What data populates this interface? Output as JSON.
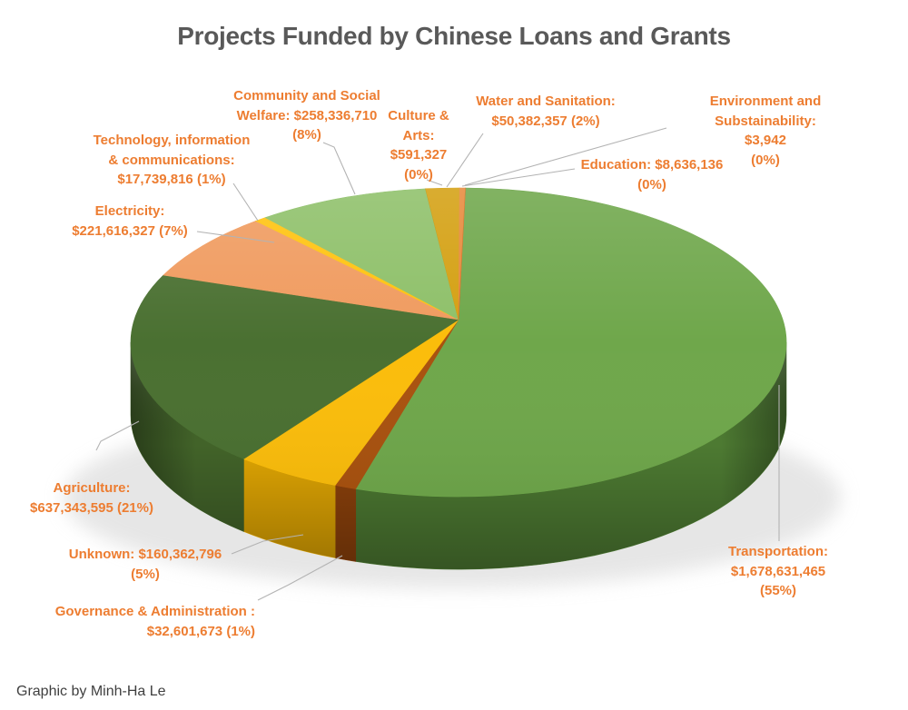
{
  "title": "Projects Funded by Chinese Loans and Grants",
  "credit": "Graphic by Minh-Ha Le",
  "colors": {
    "label_text": "#ED7D31",
    "title_text": "#595959",
    "leader_line": "#b3b3b3",
    "background": "#ffffff"
  },
  "chart_data": {
    "type": "pie",
    "style": "3d",
    "title": "Projects Funded by Chinese Loans and Grants",
    "unit": "USD",
    "slices": [
      {
        "key": "transportation",
        "name": "Transportation",
        "value": 1678631465,
        "percent_label": "55%",
        "color": "#6FA74B",
        "side_color": "#4D7A32",
        "label": "Transportation:\n$1,678,631,465 (55%)"
      },
      {
        "key": "governance-administration",
        "name": "Governance & Administration",
        "value": 32601673,
        "percent_label": "1%",
        "color": "#A9520F",
        "side_color": "#8C410B",
        "label": "Governance & Administration :\n$32,601,673 (1%)"
      },
      {
        "key": "unknown",
        "name": "Unknown",
        "value": 160362796,
        "percent_label": "5%",
        "color": "#FBBD0B",
        "side_color": "#DFA503",
        "label": "Unknown: $160,362,796\n(5%)"
      },
      {
        "key": "agriculture",
        "name": "Agriculture",
        "value": 637343595,
        "percent_label": "21%",
        "color": "#4A7031",
        "side_color": "#426329",
        "label": "Agriculture:\n$637,343,595 (21%)"
      },
      {
        "key": "electricity",
        "name": "Electricity",
        "value": 221616327,
        "percent_label": "7%",
        "color": "#F09B5F",
        "side_color": "#C97B43",
        "label": "Electricity:\n$221,616,327 (7%)"
      },
      {
        "key": "technology-information-communications",
        "name": "Technology, information & communications",
        "value": 17739816,
        "percent_label": "1%",
        "color": "#FFC30F",
        "side_color": "#D7A30A",
        "label": "Technology, information\n& communications:\n$17,739,816 (1%)"
      },
      {
        "key": "community-social-welfare",
        "name": "Community and Social Welfare",
        "value": 258336710,
        "percent_label": "8%",
        "color": "#8EC069",
        "side_color": "#74A352",
        "label": "Community and Social\nWelfare: $258,336,710\n(8%)"
      },
      {
        "key": "culture-arts",
        "name": "Culture & Arts",
        "value": 591327,
        "percent_label": "0%",
        "color": "#BF8F00",
        "side_color": "#A98717",
        "label": "Culture &\nArts:\n$591,327\n(0%)"
      },
      {
        "key": "water-sanitation",
        "name": "Water and Sanitation",
        "value": 50382357,
        "percent_label": "2%",
        "color": "#D4A012",
        "side_color": "#B28509",
        "label": "Water and Sanitation:\n$50,382,357 (2%)"
      },
      {
        "key": "education",
        "name": "Education",
        "value": 8636136,
        "percent_label": "0%",
        "color": "#E78A3C",
        "side_color": "#C26F26",
        "label": "Education: $8,636,136\n(0%)"
      },
      {
        "key": "environment-substainability",
        "name": "Environment and Substainability",
        "value": 3942,
        "percent_label": "0%",
        "color": "#D26B1E",
        "side_color": "#A9561A",
        "label": "Environment and\nSubstainability: $3,942\n(0%)"
      }
    ]
  }
}
